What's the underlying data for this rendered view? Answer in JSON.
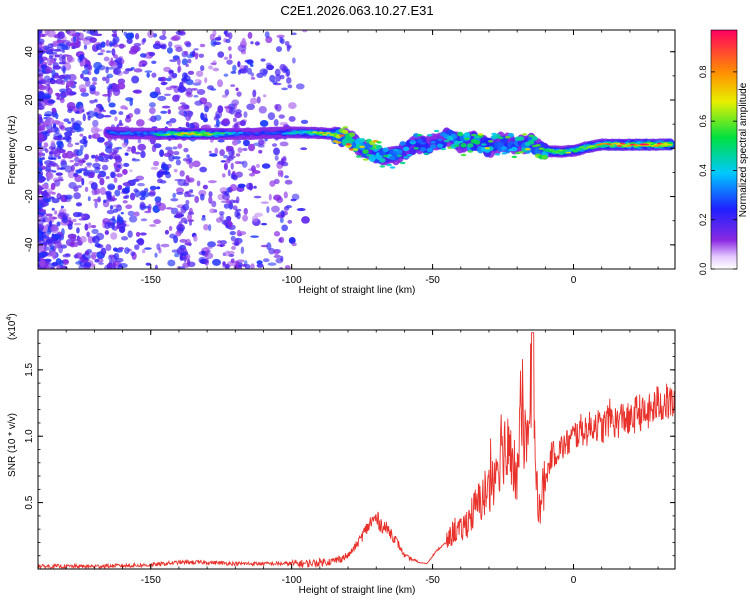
{
  "title": "C2E1.2026.063.10.27.E31",
  "colors": {
    "snr_line": "#e8312a",
    "axis": "#000000",
    "background": "#ffffff"
  },
  "chart_data": [
    {
      "type": "heatmap",
      "title": "C2E1.2026.063.10.27.E31",
      "xlabel": "Height of straight line (km)",
      "ylabel": "Frequency (Hz)",
      "xlim": [
        -190,
        36
      ],
      "ylim": [
        -50,
        49
      ],
      "x_ticks": [
        -150,
        -100,
        -50,
        0
      ],
      "x_tick_labels": [
        "-150",
        "-100",
        "-50",
        "0"
      ],
      "y_ticks": [
        -40,
        -20,
        0,
        20,
        40
      ],
      "y_tick_labels": [
        "-40",
        "-20",
        "0",
        "20",
        "40"
      ],
      "colorbar": {
        "label": "Normalized spectral amplitude",
        "range": [
          0,
          0.97
        ],
        "ticks": [
          0,
          0.2,
          0.4,
          0.6,
          0.8
        ],
        "tick_labels": [
          "0.0",
          "0.2",
          "0.4",
          "0.6",
          "0.8"
        ],
        "colormap": "rainbow (violet → blue → cyan → green → yellow → orange → red)"
      },
      "ridge": [
        {
          "x": -165,
          "y": 6.5,
          "amp": 0.3
        },
        {
          "x": -150,
          "y": 6.0,
          "amp": 0.35
        },
        {
          "x": -140,
          "y": 6.0,
          "amp": 0.65
        },
        {
          "x": -132,
          "y": 6.0,
          "amp": 0.7
        },
        {
          "x": -125,
          "y": 6.0,
          "amp": 0.5
        },
        {
          "x": -115,
          "y": 6.0,
          "amp": 0.25
        },
        {
          "x": -105,
          "y": 6.5,
          "amp": 0.3
        },
        {
          "x": -95,
          "y": 6.5,
          "amp": 0.5
        },
        {
          "x": -85,
          "y": 6.0,
          "amp": 0.7
        },
        {
          "x": -80,
          "y": 4.0,
          "amp": 0.8
        },
        {
          "x": -75,
          "y": 0.0,
          "amp": 0.6
        },
        {
          "x": -70,
          "y": -2.0,
          "amp": 0.7
        },
        {
          "x": -65,
          "y": -4.0,
          "amp": 0.5
        },
        {
          "x": -60,
          "y": -1.0,
          "amp": 0.4
        },
        {
          "x": -55,
          "y": 2.0,
          "amp": 0.45
        },
        {
          "x": -50,
          "y": 2.0,
          "amp": 0.35
        },
        {
          "x": -45,
          "y": 5.0,
          "amp": 0.5
        },
        {
          "x": -40,
          "y": 2.0,
          "amp": 0.55
        },
        {
          "x": -35,
          "y": 3.0,
          "amp": 0.6
        },
        {
          "x": -30,
          "y": 0.0,
          "amp": 0.55
        },
        {
          "x": -25,
          "y": 3.0,
          "amp": 0.5
        },
        {
          "x": -20,
          "y": 1.0,
          "amp": 0.5
        },
        {
          "x": -15,
          "y": 2.0,
          "amp": 0.6
        },
        {
          "x": -10,
          "y": -1.0,
          "amp": 0.7
        },
        {
          "x": -5,
          "y": -1.5,
          "amp": 0.7
        },
        {
          "x": 0,
          "y": -1.0,
          "amp": 0.6
        },
        {
          "x": 5,
          "y": 0.5,
          "amp": 0.65
        },
        {
          "x": 10,
          "y": 1.5,
          "amp": 0.7
        },
        {
          "x": 15,
          "y": 1.5,
          "amp": 0.75
        },
        {
          "x": 20,
          "y": 1.5,
          "amp": 0.8
        },
        {
          "x": 25,
          "y": 1.5,
          "amp": 0.85
        },
        {
          "x": 30,
          "y": 1.5,
          "amp": 0.85
        },
        {
          "x": 35,
          "y": 1.5,
          "amp": 0.85
        }
      ]
    },
    {
      "type": "line",
      "xlabel": "Height of straight line (km)",
      "ylabel": "SNR (10 * v/v)",
      "y_multiplier_label": "(x10",
      "y_multiplier_exp": "4",
      "y_multiplier_close": ")",
      "xlim": [
        -190,
        36
      ],
      "ylim": [
        0,
        1.8
      ],
      "x_ticks": [
        -150,
        -100,
        -50,
        0
      ],
      "x_tick_labels": [
        "-150",
        "-100",
        "-50",
        "0"
      ],
      "y_ticks": [
        0.5,
        1.0,
        1.5
      ],
      "y_tick_labels": [
        "0.5",
        "1.0",
        "1.5"
      ],
      "series": [
        {
          "color": "#e8312a",
          "x": [
            -190,
            -180,
            -170,
            -160,
            -150,
            -140,
            -130,
            -120,
            -110,
            -100,
            -95,
            -90,
            -85,
            -80,
            -77,
            -75,
            -72,
            -70,
            -68,
            -65,
            -62,
            -60,
            -58,
            -55,
            -52,
            -50,
            -48,
            -45,
            -42,
            -40,
            -38,
            -35,
            -32,
            -30,
            -28,
            -26,
            -25,
            -24,
            -22,
            -20,
            -18,
            -16,
            -15,
            -14,
            -13,
            -12,
            -10,
            -8,
            -5,
            -2,
            0,
            3,
            5,
            8,
            10,
            13,
            15,
            18,
            20,
            23,
            25,
            28,
            30,
            33,
            36
          ],
          "y": [
            0.02,
            0.02,
            0.02,
            0.025,
            0.03,
            0.05,
            0.05,
            0.04,
            0.04,
            0.04,
            0.04,
            0.05,
            0.06,
            0.1,
            0.18,
            0.25,
            0.35,
            0.38,
            0.33,
            0.28,
            0.18,
            0.1,
            0.08,
            0.05,
            0.04,
            0.1,
            0.15,
            0.2,
            0.3,
            0.28,
            0.35,
            0.45,
            0.55,
            0.6,
            0.75,
            0.9,
            1.0,
            0.85,
            0.8,
            0.7,
            1.2,
            0.8,
            1.4,
            0.9,
            0.6,
            0.5,
            0.65,
            0.85,
            0.9,
            0.95,
            1.0,
            1.05,
            1.05,
            1.1,
            1.05,
            1.15,
            1.1,
            1.15,
            1.1,
            1.2,
            1.15,
            1.2,
            1.25,
            1.25,
            1.25
          ]
        }
      ]
    }
  ]
}
